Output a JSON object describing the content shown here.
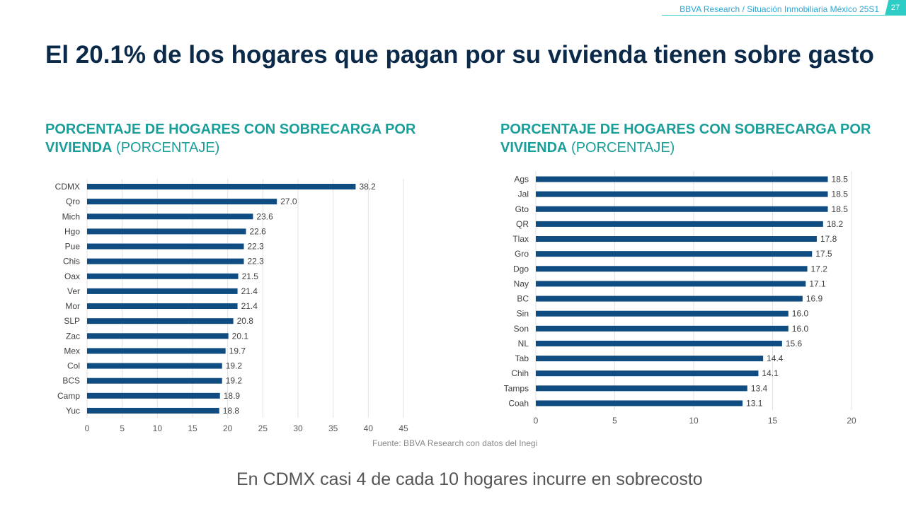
{
  "header": {
    "source": "BBVA Research / Situación Inmobiliaria México 25S1",
    "page_number": "27"
  },
  "page": {
    "title": "El 20.1% de los hogares que pagan por su vivienda tienen sobre gasto"
  },
  "colors": {
    "bar": "#0f4c81",
    "accent": "#1a9e9a",
    "grid": "#e2e2e2"
  },
  "chart_left_title": {
    "bold": "PORCENTAJE DE HOGARES CON SOBRECARGA POR VIVIENDA",
    "light": "(PORCENTAJE)"
  },
  "chart_right_title": {
    "bold": "PORCENTAJE DE HOGARES CON SOBRECARGA POR VIVIENDA",
    "light": "(PORCENTAJE)"
  },
  "chart_data": [
    {
      "type": "bar",
      "orientation": "horizontal",
      "title": "PORCENTAJE DE HOGARES CON SOBRECARGA POR VIVIENDA (PORCENTAJE)",
      "categories": [
        "CDMX",
        "Qro",
        "Mich",
        "Hgo",
        "Pue",
        "Chis",
        "Oax",
        "Ver",
        "Mor",
        "SLP",
        "Zac",
        "Mex",
        "Col",
        "BCS",
        "Camp",
        "Yuc"
      ],
      "values": [
        38.2,
        27.0,
        23.6,
        22.6,
        22.3,
        22.3,
        21.5,
        21.4,
        21.4,
        20.8,
        20.1,
        19.7,
        19.2,
        19.2,
        18.9,
        18.8
      ],
      "value_labels": [
        "38.2",
        "27.0",
        "23.6",
        "22.6",
        "22.3",
        "22.3",
        "21.5",
        "21.4",
        "21.4",
        "20.8",
        "20.1",
        "19.7",
        "19.2",
        "19.2",
        "18.9",
        "18.8"
      ],
      "xlim": [
        0,
        45
      ],
      "ticks": [
        "0",
        "5",
        "10",
        "15",
        "20",
        "25",
        "30",
        "35",
        "40",
        "45"
      ],
      "grid": true
    },
    {
      "type": "bar",
      "orientation": "horizontal",
      "title": "PORCENTAJE DE HOGARES CON SOBRECARGA POR VIVIENDA (PORCENTAJE)",
      "categories": [
        "Ags",
        "Jal",
        "Gto",
        "QR",
        "Tlax",
        "Gro",
        "Dgo",
        "Nay",
        "BC",
        "Sin",
        "Son",
        "NL",
        "Tab",
        "Chih",
        "Tamps",
        "Coah"
      ],
      "values": [
        18.5,
        18.5,
        18.5,
        18.2,
        17.8,
        17.5,
        17.2,
        17.1,
        16.9,
        16.0,
        16.0,
        15.6,
        14.4,
        14.1,
        13.4,
        13.1
      ],
      "value_labels": [
        "18.5",
        "18.5",
        "18.5",
        "18.2",
        "17.8",
        "17.5",
        "17.2",
        "17.1",
        "16.9",
        "16.0",
        "16.0",
        "15.6",
        "14.4",
        "14.1",
        "13.4",
        "13.1"
      ],
      "xlim": [
        0,
        20
      ],
      "ticks": [
        "0",
        "5",
        "10",
        "15",
        "20"
      ],
      "grid": true
    }
  ],
  "source_note": "Fuente: BBVA Research con datos del Inegi",
  "footer": {
    "text": "En CDMX casi 4 de cada 10 hogares incurre en sobrecosto"
  }
}
